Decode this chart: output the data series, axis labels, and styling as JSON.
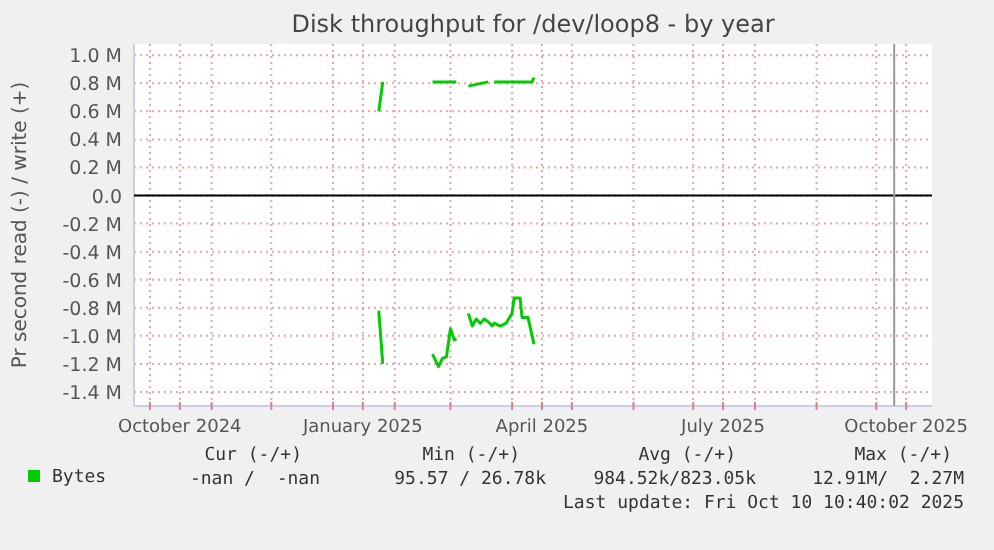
{
  "chart_data": {
    "type": "line",
    "title": "Disk throughput for /dev/loop8 - by year",
    "ylabel": "Pr second read (-) / write (+)",
    "xlim": [
      "2024-09-23",
      "2025-10-29"
    ],
    "xticks": [
      {
        "value": "2024-10-01",
        "label": null
      },
      {
        "value": "2024-10-16",
        "label": "October 2024"
      },
      {
        "value": "2024-11-01",
        "label": null
      },
      {
        "value": "2024-12-01",
        "label": null
      },
      {
        "value": "2025-01-01",
        "label": null
      },
      {
        "value": "2025-01-16",
        "label": "January 2025"
      },
      {
        "value": "2025-02-01",
        "label": null
      },
      {
        "value": "2025-03-01",
        "label": null
      },
      {
        "value": "2025-04-01",
        "label": null
      },
      {
        "value": "2025-04-16",
        "label": "April 2025"
      },
      {
        "value": "2025-05-01",
        "label": null
      },
      {
        "value": "2025-06-01",
        "label": null
      },
      {
        "value": "2025-07-01",
        "label": null
      },
      {
        "value": "2025-07-16",
        "label": "July 2025"
      },
      {
        "value": "2025-08-01",
        "label": null
      },
      {
        "value": "2025-09-01",
        "label": null
      },
      {
        "value": "2025-10-01",
        "label": null
      },
      {
        "value": "2025-10-16",
        "label": "October 2025"
      }
    ],
    "ylim": [
      -1.5,
      1.08
    ],
    "yticks": [
      {
        "value": -1.4,
        "label": "-1.4 M"
      },
      {
        "value": -1.2,
        "label": "-1.2 M"
      },
      {
        "value": -1.0,
        "label": "-1.0 M"
      },
      {
        "value": -0.8,
        "label": "-0.8 M"
      },
      {
        "value": -0.6,
        "label": "-0.6 M"
      },
      {
        "value": -0.4,
        "label": "-0.4 M"
      },
      {
        "value": -0.2,
        "label": "-0.2 M"
      },
      {
        "value": 0,
        "label": "0.0"
      },
      {
        "value": 0.2,
        "label": "0.2 M"
      },
      {
        "value": 0.4,
        "label": "0.4 M"
      },
      {
        "value": 0.6,
        "label": "0.6 M"
      },
      {
        "value": 0.8,
        "label": "0.8 M"
      },
      {
        "value": 1.0,
        "label": "1.0 M"
      }
    ],
    "grid": true,
    "legend": "bottom",
    "series": [
      {
        "name": "Bytes",
        "color": "#00cc00",
        "x": [
          "2025-01-24",
          "2025-01-26",
          "2025-02-10",
          "2025-02-20",
          "2025-03-04",
          "2025-03-07",
          "2025-03-10",
          "2025-03-20",
          "2025-03-21",
          "2025-03-23",
          "2025-04-11",
          "2025-04-12"
        ],
        "values": [
          0.6,
          0.81,
          null,
          0.81,
          0.81,
          null,
          0.78,
          0.81,
          null,
          0.81,
          0.81,
          0.84
        ]
      },
      {
        "color": "#00cc00",
        "x": [
          "2025-01-24",
          "2025-01-26",
          "2025-02-10",
          "2025-02-20",
          "2025-02-23",
          "2025-02-25",
          "2025-02-27",
          "2025-03-01",
          "2025-03-03",
          "2025-03-04",
          "2025-03-07",
          "2025-03-10",
          "2025-03-12",
          "2025-03-14",
          "2025-03-16",
          "2025-03-18",
          "2025-03-20",
          "2025-03-22",
          "2025-03-23",
          "2025-03-26",
          "2025-03-29",
          "2025-04-01",
          "2025-04-02",
          "2025-04-05",
          "2025-04-06",
          "2025-04-09",
          "2025-04-12"
        ],
        "values": [
          -0.82,
          -1.2,
          null,
          -1.13,
          -1.22,
          -1.16,
          -1.15,
          -0.95,
          -1.03,
          -1.02,
          null,
          -0.84,
          -0.93,
          -0.88,
          -0.91,
          -0.88,
          -0.9,
          -0.93,
          -0.91,
          -0.93,
          -0.91,
          -0.84,
          -0.73,
          -0.73,
          -0.87,
          -0.87,
          -1.06
        ]
      }
    ],
    "ref_lines": [
      {
        "axis": "y",
        "value": 0,
        "color": "#000000"
      },
      {
        "axis": "x",
        "value": "2025-10-10",
        "color": "#999999"
      }
    ],
    "annotations": [
      "Cur (-/+)",
      "Min (-/+)",
      "Avg (-/+)",
      "Max (-/+)",
      "-nan /  -nan",
      "95.57 / 26.78k",
      "984.52k/823.05k",
      "12.91M/  2.27M",
      "Last update: Fri Oct 10 10:40:02 2025"
    ]
  }
}
